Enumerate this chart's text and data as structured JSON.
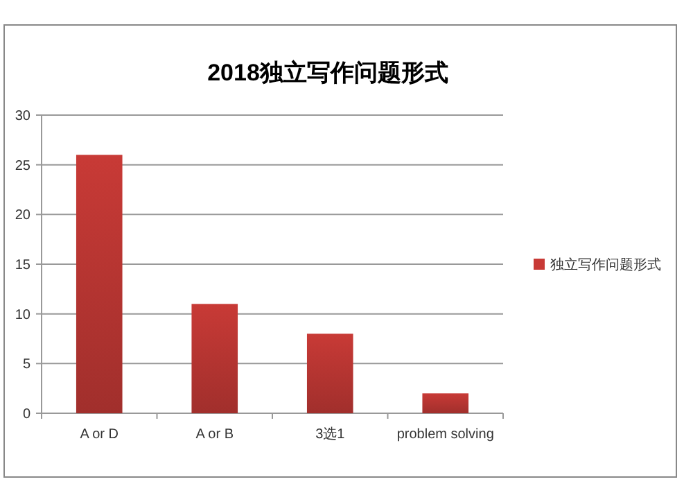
{
  "chart_data": {
    "type": "bar",
    "title": "2018独立写作问题形式",
    "categories": [
      "A or D",
      "A or B",
      "3选1",
      "problem solving"
    ],
    "series": [
      {
        "name": "独立写作问题形式",
        "color": "#c83a36",
        "values": [
          26,
          11,
          8,
          2
        ]
      }
    ],
    "ylim": [
      0,
      30
    ],
    "yticks": [
      0,
      5,
      10,
      15,
      20,
      25,
      30
    ],
    "grid": "y",
    "legend": "right"
  }
}
